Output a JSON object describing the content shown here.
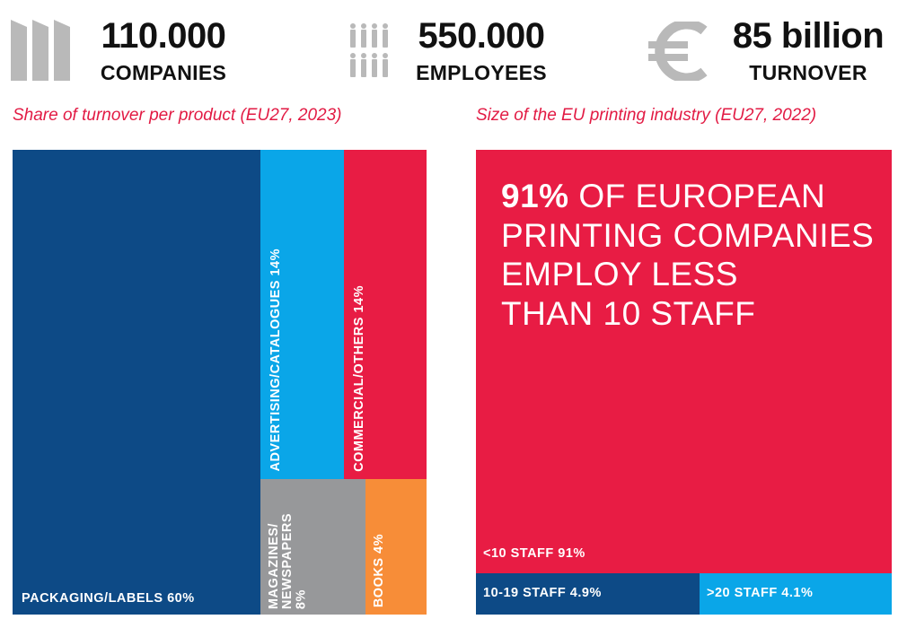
{
  "stats": [
    {
      "value": "110.000",
      "label": "COMPANIES",
      "icon": "factory-icon"
    },
    {
      "value": "550.000",
      "label": "EMPLOYEES",
      "icon": "people-icon"
    },
    {
      "value": "85 billion",
      "label": "TURNOVER",
      "icon": "euro-icon"
    }
  ],
  "colors": {
    "dark_blue": "#0d4a86",
    "light_blue": "#0aa6e8",
    "red": "#e81c44",
    "gray": "#97989a",
    "orange": "#f78d38",
    "icon_gray": "#b9b9b9"
  },
  "chart_data": [
    {
      "type": "treemap",
      "title": "Share of turnover per product (EU27, 2023)",
      "unit": "%",
      "items": [
        {
          "name": "PACKAGING/LABELS",
          "value": 60,
          "label": "PACKAGING/LABELS 60%"
        },
        {
          "name": "ADVERTISING/CATALOGUES",
          "value": 14,
          "label": "ADVERTISING/CATALOGUES 14%"
        },
        {
          "name": "COMMERCIAL/OTHERS",
          "value": 14,
          "label": "COMMERCIAL/OTHERS 14%"
        },
        {
          "name": "MAGAZINES/ NEWSPAPERS",
          "value": 8,
          "label_line1": "MAGAZINES/",
          "label_line2": "NEWSPAPERS",
          "label_line3": "8%"
        },
        {
          "name": "BOOKS",
          "value": 4,
          "label": "BOOKS 4%"
        }
      ]
    },
    {
      "type": "treemap",
      "title": "Size of the EU printing  industry (EU27, 2022)",
      "unit": "%",
      "headline": {
        "bold": "91%",
        "line1_rest": " OF EUROPEAN",
        "line2": "PRINTING COMPANIES",
        "line3": "EMPLOY LESS",
        "line4": "THAN 10 STAFF"
      },
      "items": [
        {
          "name": "<10 STAFF",
          "value": 91,
          "label": "<10 STAFF 91%"
        },
        {
          "name": "10-19 STAFF",
          "value": 4.9,
          "label": "10-19 STAFF 4.9%"
        },
        {
          "name": ">20 STAFF",
          "value": 4.1,
          "label": ">20 STAFF 4.1%"
        }
      ]
    }
  ]
}
